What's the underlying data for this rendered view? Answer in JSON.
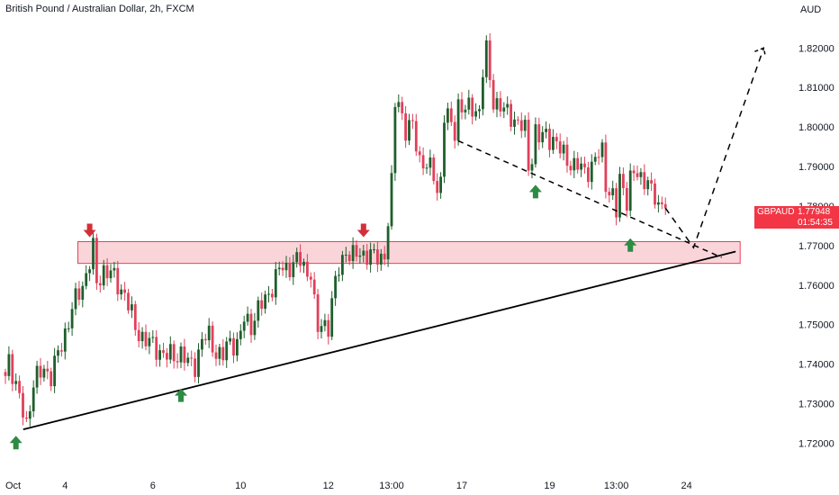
{
  "header": {
    "title": "British Pound / Australian Dollar, 2h, FXCM",
    "currency": "AUD"
  },
  "price_badge": {
    "symbol": "GBPAUD",
    "price": "1.77948",
    "countdown": "01:54:35",
    "color": "#f23645"
  },
  "colors": {
    "up": "#1f5f2c",
    "down": "#e0405a",
    "zone_fill": "#f9d5da",
    "zone_border": "#e8405a",
    "arrow_down": "#d32f3a",
    "arrow_up": "#2e8b43",
    "trendline": "#000000"
  },
  "chart_data": {
    "type": "candlestick",
    "title": "British Pound / Australian Dollar, 2h, FXCM",
    "ylabel": "AUD",
    "ylim": [
      1.7135,
      1.8285
    ],
    "y_ticks": [
      "1.82000",
      "1.81000",
      "1.80000",
      "1.79000",
      "1.78000",
      "1.77000",
      "1.76000",
      "1.75000",
      "1.74000",
      "1.73000",
      "1.72000"
    ],
    "y_tick_values": [
      1.82,
      1.81,
      1.8,
      1.79,
      1.78,
      1.77,
      1.76,
      1.75,
      1.74,
      1.73,
      1.72
    ],
    "x_ticks": [
      "Oct",
      "4",
      "6",
      "10",
      "12",
      "13:00",
      "17",
      "19",
      "13:00",
      "24"
    ],
    "x_tick_index": [
      0,
      17,
      42,
      67,
      92,
      110,
      130,
      155,
      174,
      194
    ],
    "last_price": 1.77948,
    "waypoints": [
      [
        0,
        1.737
      ],
      [
        1,
        1.742
      ],
      [
        3,
        1.734
      ],
      [
        6,
        1.725
      ],
      [
        8,
        1.735
      ],
      [
        11,
        1.739
      ],
      [
        13,
        1.737
      ],
      [
        16,
        1.745
      ],
      [
        19,
        1.754
      ],
      [
        22,
        1.76
      ],
      [
        25,
        1.769
      ],
      [
        26,
        1.76
      ],
      [
        28,
        1.764
      ],
      [
        30,
        1.763
      ],
      [
        32,
        1.76
      ],
      [
        34,
        1.758
      ],
      [
        37,
        1.749
      ],
      [
        40,
        1.746
      ],
      [
        43,
        1.744
      ],
      [
        46,
        1.742
      ],
      [
        48,
        1.742
      ],
      [
        50,
        1.743
      ],
      [
        52,
        1.74
      ],
      [
        54,
        1.74
      ],
      [
        56,
        1.746
      ],
      [
        58,
        1.747
      ],
      [
        60,
        1.743
      ],
      [
        62,
        1.742
      ],
      [
        64,
        1.746
      ],
      [
        66,
        1.745
      ],
      [
        68,
        1.751
      ],
      [
        70,
        1.75
      ],
      [
        72,
        1.754
      ],
      [
        74,
        1.756
      ],
      [
        76,
        1.76
      ],
      [
        78,
        1.764
      ],
      [
        80,
        1.764
      ],
      [
        82,
        1.766
      ],
      [
        84,
        1.766
      ],
      [
        86,
        1.763
      ],
      [
        87,
        1.764
      ],
      [
        88,
        1.755
      ],
      [
        89,
        1.748
      ],
      [
        90,
        1.75
      ],
      [
        92,
        1.75
      ],
      [
        93,
        1.756
      ],
      [
        95,
        1.764
      ],
      [
        97,
        1.769
      ],
      [
        99,
        1.767
      ],
      [
        101,
        1.768
      ],
      [
        103,
        1.768
      ],
      [
        105,
        1.767
      ],
      [
        107,
        1.767
      ],
      [
        108,
        1.768
      ],
      [
        109,
        1.776
      ],
      [
        110,
        1.785
      ],
      [
        111,
        1.806
      ],
      [
        112,
        1.807
      ],
      [
        113,
        1.803
      ],
      [
        114,
        1.799
      ],
      [
        116,
        1.8
      ],
      [
        118,
        1.792
      ],
      [
        120,
        1.79
      ],
      [
        122,
        1.788
      ],
      [
        123,
        1.784
      ],
      [
        124,
        1.787
      ],
      [
        125,
        1.803
      ],
      [
        126,
        1.802
      ],
      [
        128,
        1.799
      ],
      [
        129,
        1.806
      ],
      [
        131,
        1.804
      ],
      [
        133,
        1.805
      ],
      [
        135,
        1.804
      ],
      [
        136,
        1.814
      ],
      [
        137,
        1.819
      ],
      [
        138,
        1.812
      ],
      [
        139,
        1.807
      ],
      [
        140,
        1.806
      ],
      [
        142,
        1.804
      ],
      [
        144,
        1.803
      ],
      [
        146,
        1.801
      ],
      [
        148,
        1.799
      ],
      [
        149,
        1.79
      ],
      [
        150,
        1.793
      ],
      [
        151,
        1.799
      ],
      [
        152,
        1.797
      ],
      [
        154,
        1.798
      ],
      [
        156,
        1.797
      ],
      [
        158,
        1.794
      ],
      [
        160,
        1.792
      ],
      [
        162,
        1.79
      ],
      [
        163,
        1.79
      ],
      [
        165,
        1.789
      ],
      [
        167,
        1.79
      ],
      [
        169,
        1.793
      ],
      [
        170,
        1.794
      ],
      [
        171,
        1.786
      ],
      [
        172,
        1.784
      ],
      [
        173,
        1.782
      ],
      [
        174,
        1.778
      ],
      [
        175,
        1.787
      ],
      [
        177,
        1.782
      ],
      [
        178,
        1.787
      ],
      [
        180,
        1.788
      ],
      [
        181,
        1.787
      ],
      [
        183,
        1.787
      ],
      [
        184,
        1.783
      ],
      [
        186,
        1.78
      ],
      [
        187,
        1.781
      ],
      [
        188,
        1.7795
      ]
    ],
    "resistance_zone": {
      "low": 1.7655,
      "high": 1.771,
      "from_index": 5,
      "to_index": 208
    },
    "support_trendline": {
      "from": [
        2,
        1.7235
      ],
      "to": [
        208,
        1.7685
      ]
    },
    "descending_trendline": {
      "from": [
        129,
        1.7965
      ],
      "to": [
        204,
        1.767
      ]
    },
    "projection_path": [
      [
        188,
        1.7795
      ],
      [
        196,
        1.7695
      ],
      [
        216,
        1.82
      ]
    ],
    "down_arrows": [
      [
        24,
        1.7735
      ],
      [
        102,
        1.7735
      ]
    ],
    "up_arrows": [
      [
        3,
        1.7205
      ],
      [
        50,
        1.7325
      ],
      [
        151,
        1.784
      ],
      [
        178,
        1.7705
      ]
    ]
  }
}
